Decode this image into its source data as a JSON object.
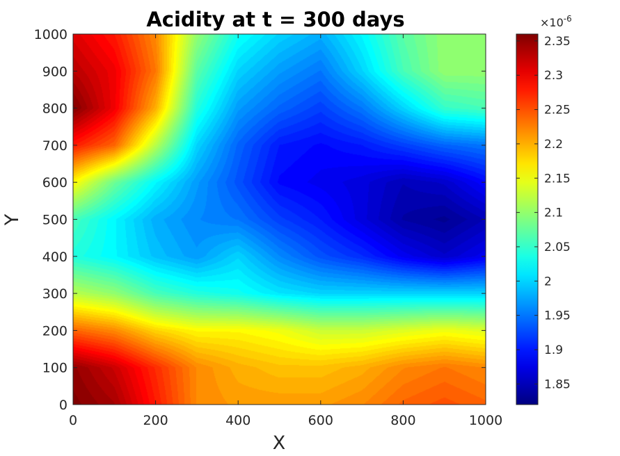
{
  "chart_data": {
    "type": "heatmap",
    "title": "Acidity at t = 300 days",
    "xlabel": "X",
    "ylabel": "Y",
    "xlim": [
      0,
      1000
    ],
    "ylim": [
      0,
      1000
    ],
    "x_ticks": [
      0,
      200,
      400,
      600,
      800,
      1000
    ],
    "y_ticks": [
      0,
      100,
      200,
      300,
      400,
      500,
      600,
      700,
      800,
      900,
      1000
    ],
    "colorbar": {
      "colormap": "jet",
      "range": [
        1.82,
        2.36
      ],
      "ticks": [
        1.85,
        1.9,
        1.95,
        2,
        2.05,
        2.1,
        2.15,
        2.2,
        2.25,
        2.3,
        2.35
      ],
      "exponent_label": "×10",
      "exponent": "-6"
    },
    "x": [
      0,
      100,
      200,
      300,
      400,
      500,
      600,
      700,
      800,
      900,
      1000
    ],
    "y": [
      0,
      100,
      200,
      300,
      400,
      500,
      600,
      700,
      800,
      900,
      1000
    ],
    "z": [
      [
        2.36,
        2.34,
        2.28,
        2.22,
        2.21,
        2.21,
        2.21,
        2.22,
        2.24,
        2.25,
        2.24
      ],
      [
        2.35,
        2.32,
        2.27,
        2.22,
        2.2,
        2.19,
        2.19,
        2.2,
        2.22,
        2.23,
        2.22
      ],
      [
        2.24,
        2.22,
        2.18,
        2.16,
        2.16,
        2.15,
        2.13,
        2.13,
        2.14,
        2.15,
        2.14
      ],
      [
        2.12,
        2.1,
        2.06,
        2.04,
        2.03,
        2.01,
        2.0,
        2.0,
        2.0,
        2.0,
        2.0
      ],
      [
        2.04,
        2.02,
        1.99,
        1.97,
        2.0,
        1.96,
        1.93,
        1.91,
        1.88,
        1.86,
        1.88
      ],
      [
        2.06,
        2.02,
        1.98,
        1.96,
        1.95,
        1.92,
        1.9,
        1.87,
        1.84,
        1.83,
        1.85
      ],
      [
        2.16,
        2.08,
        2.02,
        1.97,
        1.93,
        1.89,
        1.88,
        1.87,
        1.85,
        1.86,
        1.89
      ],
      [
        2.28,
        2.24,
        2.12,
        2.0,
        1.94,
        1.9,
        1.89,
        1.9,
        1.92,
        1.94,
        1.95
      ],
      [
        2.36,
        2.3,
        2.2,
        2.04,
        1.97,
        1.94,
        1.92,
        1.95,
        2.0,
        2.05,
        2.06
      ],
      [
        2.33,
        2.3,
        2.23,
        2.07,
        2.0,
        1.97,
        1.95,
        2.0,
        2.06,
        2.1,
        2.1
      ],
      [
        2.31,
        2.28,
        2.22,
        2.1,
        2.03,
        2.0,
        1.98,
        2.02,
        2.07,
        2.1,
        2.1
      ]
    ]
  }
}
